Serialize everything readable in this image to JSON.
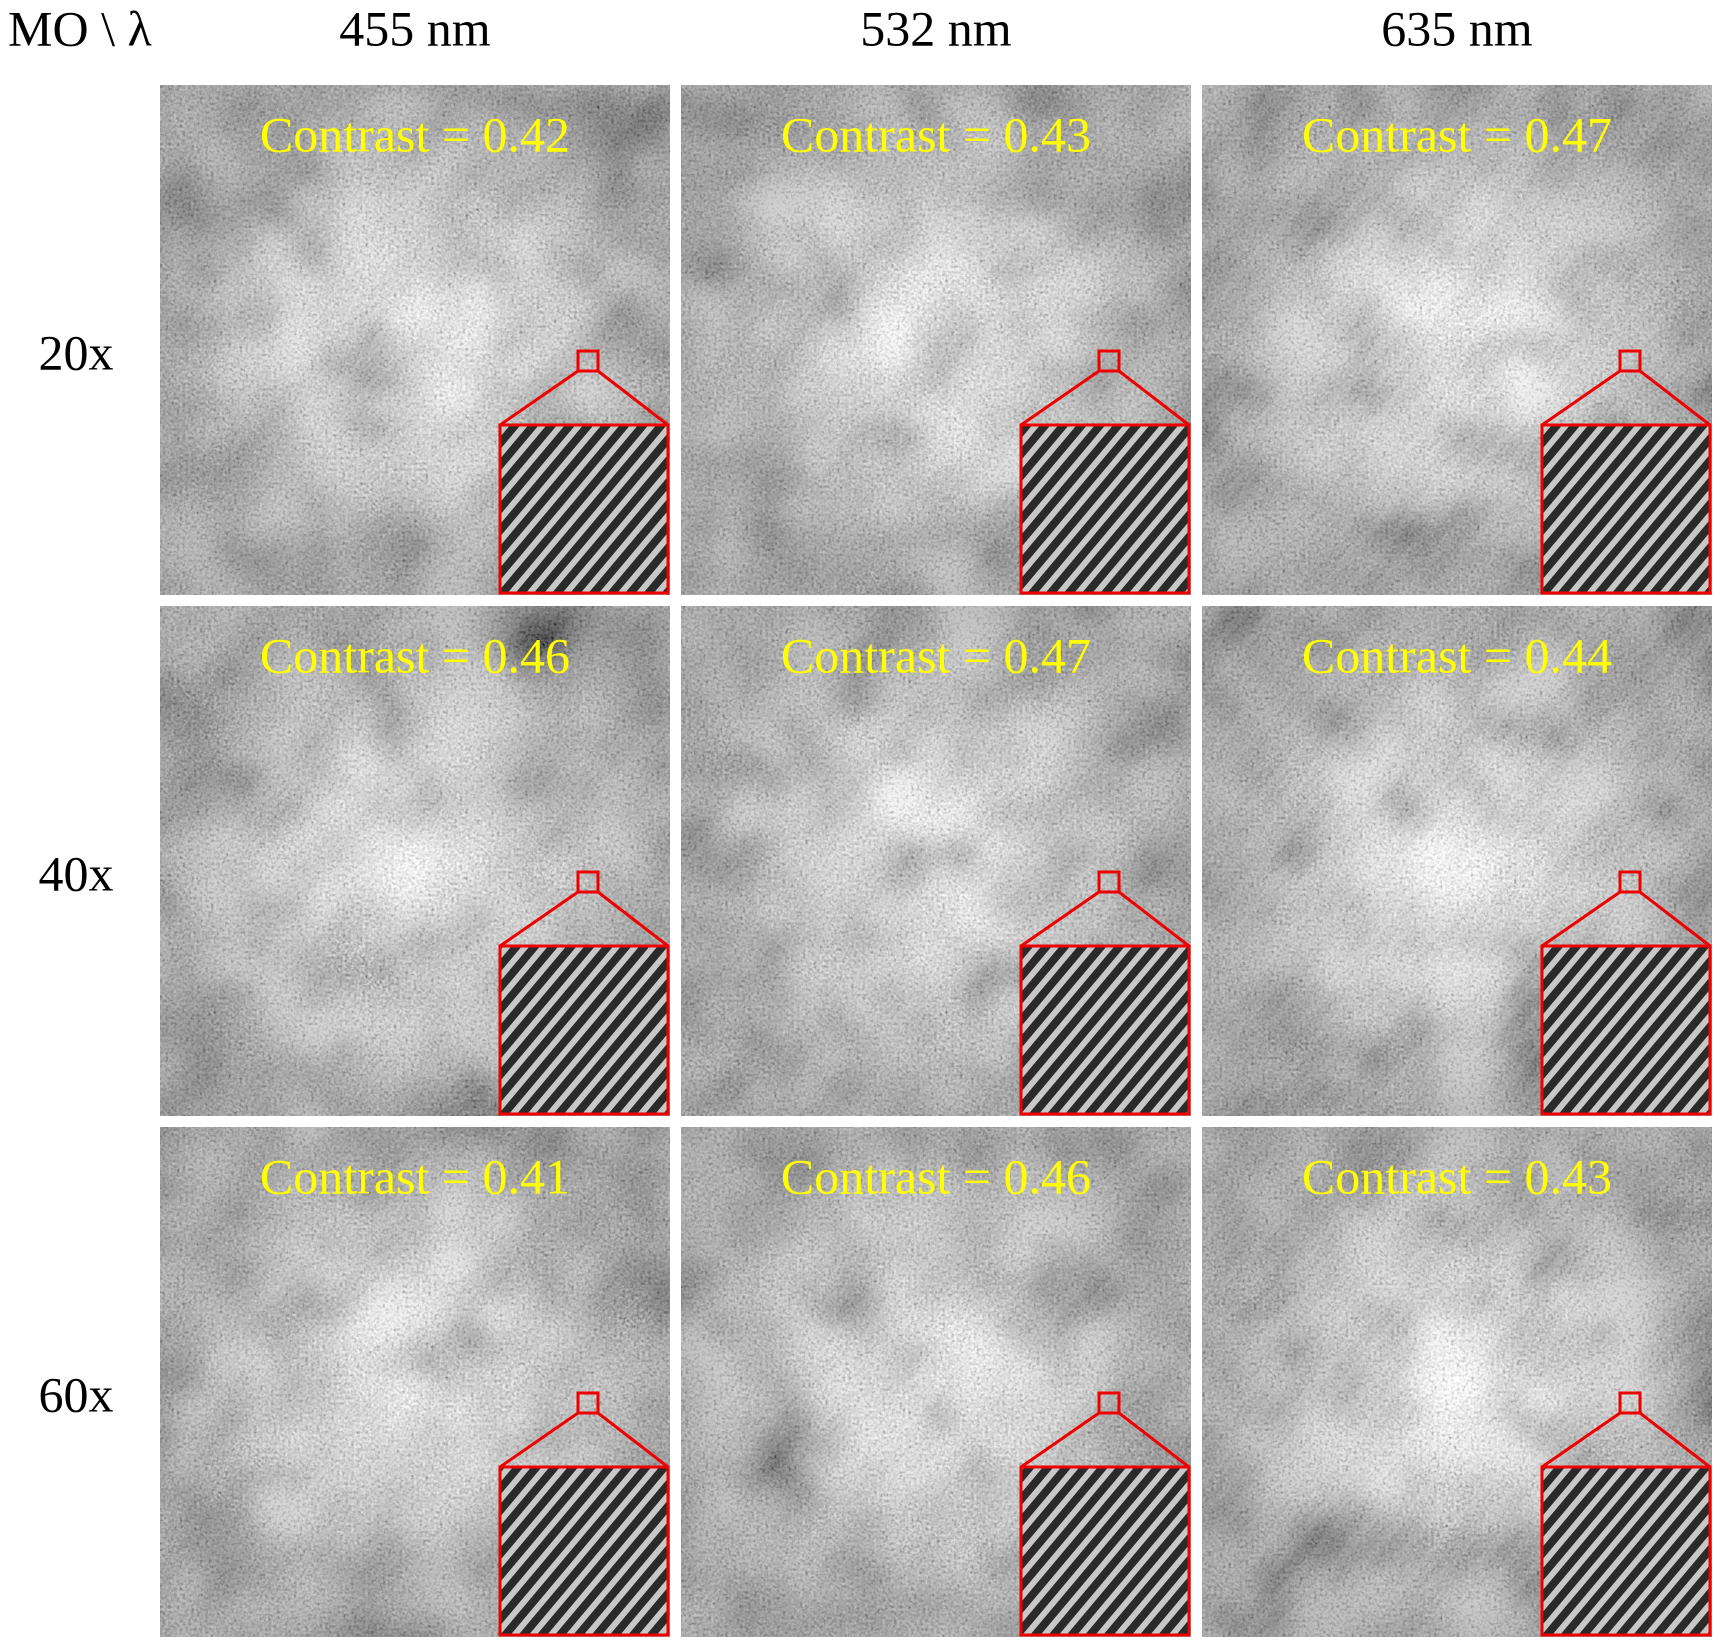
{
  "header": {
    "corner": "MO \\ λ",
    "columns": [
      "455 nm",
      "532 nm",
      "635 nm"
    ]
  },
  "rows": [
    {
      "label": "20x",
      "cells": [
        "Contrast = 0.42",
        "Contrast = 0.43",
        "Contrast = 0.47"
      ]
    },
    {
      "label": "40x",
      "cells": [
        "Contrast = 0.46",
        "Contrast = 0.47",
        "Contrast = 0.44"
      ]
    },
    {
      "label": "60x",
      "cells": [
        "Contrast = 0.41",
        "Contrast = 0.46",
        "Contrast = 0.43"
      ]
    }
  ]
}
